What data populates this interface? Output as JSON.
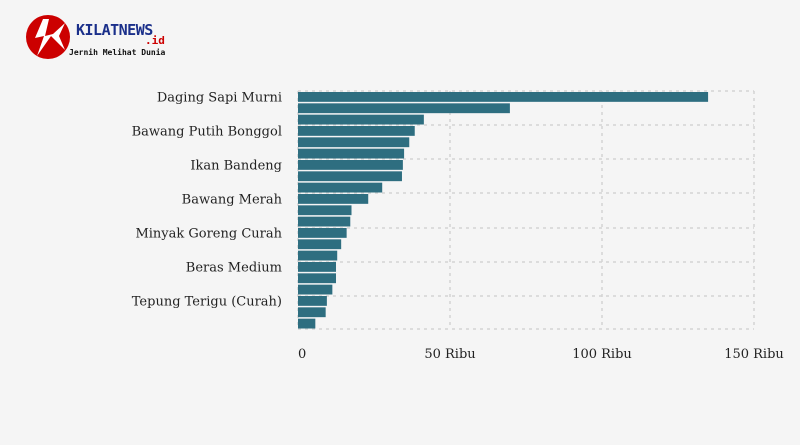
{
  "logo": {
    "brand": "KILATNEWS",
    "tld": ".id",
    "tagline": "Jernih Melihat Dunia",
    "color_primary": "#cc0000",
    "color_text": "#1a2f8a"
  },
  "chart_data": {
    "type": "bar",
    "orientation": "horizontal",
    "categories": [
      "Daging Sapi Murni",
      "",
      "",
      "Bawang Putih Bonggol",
      "",
      "",
      "Ikan Bandeng",
      "",
      "",
      "Bawang Merah",
      "",
      "",
      "Minyak Goreng Curah",
      "",
      "",
      "Beras Medium",
      "",
      "",
      "Tepung Terigu (Curah)",
      "",
      ""
    ],
    "values": [
      134.9,
      69.7,
      41.4,
      38.4,
      36.6,
      34.9,
      34.5,
      34.2,
      27.7,
      23.1,
      17.6,
      17.2,
      16.0,
      14.2,
      12.9,
      12.5,
      12.5,
      11.3,
      9.5,
      9.1,
      5.7
    ],
    "xlim": [
      0,
      150
    ],
    "xticks": [
      0,
      50,
      100,
      150
    ],
    "xtick_labels": [
      "0",
      "50 Ribu",
      "100 Ribu",
      "150 Ribu"
    ],
    "title": "",
    "xlabel": "",
    "ylabel": "",
    "grid": true,
    "bar_color": "#2e6e80"
  }
}
